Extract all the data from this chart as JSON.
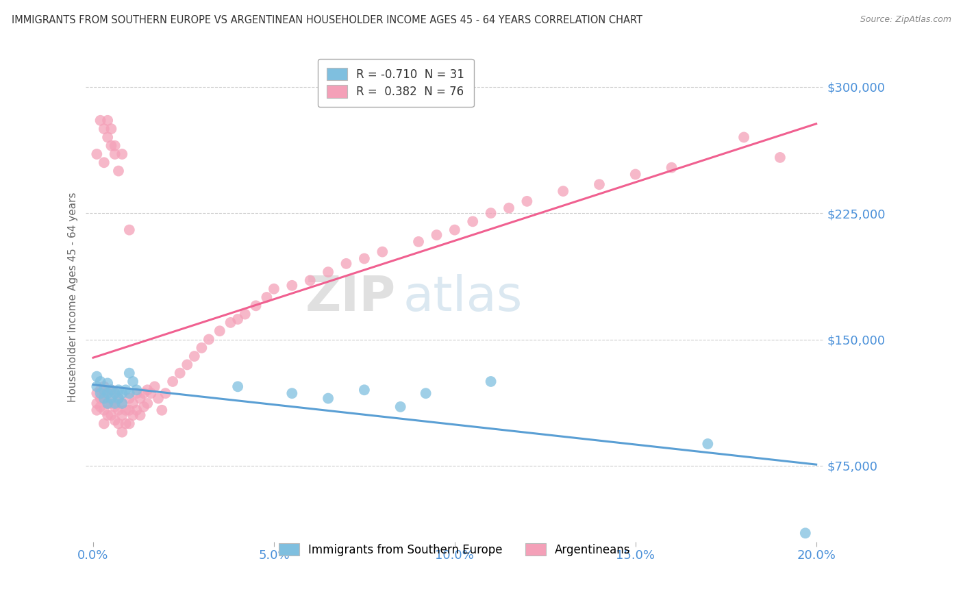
{
  "title": "IMMIGRANTS FROM SOUTHERN EUROPE VS ARGENTINEAN HOUSEHOLDER INCOME AGES 45 - 64 YEARS CORRELATION CHART",
  "source": "Source: ZipAtlas.com",
  "ylabel": "Householder Income Ages 45 - 64 years",
  "xlim": [
    -0.002,
    0.202
  ],
  "ylim": [
    30000,
    320000
  ],
  "yticks": [
    75000,
    150000,
    225000,
    300000
  ],
  "ytick_labels": [
    "$75,000",
    "$150,000",
    "$225,000",
    "$300,000"
  ],
  "xticks": [
    0.0,
    0.05,
    0.1,
    0.15,
    0.2
  ],
  "xtick_labels": [
    "0.0%",
    "5.0%",
    "10.0%",
    "15.0%",
    "20.0%"
  ],
  "watermark_zip": "ZIP",
  "watermark_atlas": "atlas",
  "legend1_label": "R = -0.710  N = 31",
  "legend2_label": "R =  0.382  N = 76",
  "legend_bottom1": "Immigrants from Southern Europe",
  "legend_bottom2": "Argentineans",
  "blue_color": "#7fbfdf",
  "pink_color": "#f4a0b8",
  "blue_line_color": "#5a9fd4",
  "pink_line_color": "#f06090",
  "blue_scatter_x": [
    0.001,
    0.001,
    0.002,
    0.002,
    0.003,
    0.003,
    0.004,
    0.004,
    0.004,
    0.005,
    0.005,
    0.006,
    0.006,
    0.007,
    0.007,
    0.008,
    0.008,
    0.009,
    0.01,
    0.01,
    0.011,
    0.012,
    0.04,
    0.055,
    0.065,
    0.075,
    0.085,
    0.092,
    0.11,
    0.17,
    0.197
  ],
  "blue_scatter_y": [
    128000,
    122000,
    125000,
    118000,
    120000,
    115000,
    124000,
    118000,
    112000,
    120000,
    115000,
    118000,
    112000,
    120000,
    115000,
    118000,
    112000,
    120000,
    130000,
    118000,
    125000,
    120000,
    122000,
    118000,
    115000,
    120000,
    110000,
    118000,
    125000,
    88000,
    35000
  ],
  "pink_scatter_x": [
    0.001,
    0.001,
    0.001,
    0.002,
    0.002,
    0.002,
    0.003,
    0.003,
    0.003,
    0.003,
    0.004,
    0.004,
    0.004,
    0.005,
    0.005,
    0.005,
    0.006,
    0.006,
    0.006,
    0.007,
    0.007,
    0.007,
    0.008,
    0.008,
    0.008,
    0.009,
    0.009,
    0.01,
    0.01,
    0.01,
    0.011,
    0.011,
    0.012,
    0.012,
    0.013,
    0.013,
    0.014,
    0.014,
    0.015,
    0.015,
    0.016,
    0.017,
    0.018,
    0.019,
    0.02,
    0.022,
    0.024,
    0.026,
    0.028,
    0.03,
    0.032,
    0.035,
    0.038,
    0.04,
    0.042,
    0.045,
    0.048,
    0.05,
    0.055,
    0.06,
    0.065,
    0.07,
    0.075,
    0.08,
    0.09,
    0.095,
    0.1,
    0.105,
    0.11,
    0.115,
    0.12,
    0.13,
    0.14,
    0.15,
    0.16,
    0.19
  ],
  "pink_scatter_y": [
    118000,
    112000,
    108000,
    120000,
    115000,
    110000,
    122000,
    115000,
    108000,
    100000,
    118000,
    112000,
    105000,
    120000,
    112000,
    105000,
    118000,
    110000,
    102000,
    115000,
    108000,
    100000,
    112000,
    105000,
    95000,
    108000,
    100000,
    115000,
    108000,
    100000,
    112000,
    105000,
    118000,
    108000,
    115000,
    105000,
    118000,
    110000,
    120000,
    112000,
    118000,
    122000,
    115000,
    108000,
    118000,
    125000,
    130000,
    135000,
    140000,
    145000,
    150000,
    155000,
    160000,
    162000,
    165000,
    170000,
    175000,
    180000,
    182000,
    185000,
    190000,
    195000,
    198000,
    202000,
    208000,
    212000,
    215000,
    220000,
    225000,
    228000,
    232000,
    238000,
    242000,
    248000,
    252000,
    258000
  ],
  "pink_scatter_high_x": [
    0.001,
    0.003,
    0.004,
    0.005,
    0.006,
    0.007,
    0.008,
    0.01
  ],
  "pink_scatter_high_y": [
    260000,
    255000,
    270000,
    265000,
    260000,
    250000,
    260000,
    215000
  ],
  "pink_scatter_veryhigh_x": [
    0.002,
    0.003,
    0.004,
    0.005,
    0.006,
    0.18
  ],
  "pink_scatter_veryhigh_y": [
    280000,
    275000,
    280000,
    275000,
    265000,
    270000
  ],
  "background_color": "#ffffff",
  "grid_color": "#cccccc",
  "title_color": "#333333",
  "tick_color": "#4a90d9"
}
